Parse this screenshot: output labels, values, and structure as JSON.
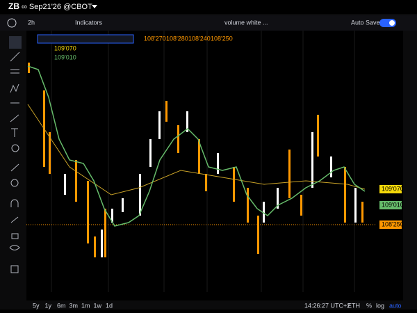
{
  "header": {
    "symbol": "ZB",
    "contract": "∞ Sep21'26 @CBOT"
  },
  "toolbar": {
    "interval": "2h",
    "indicators": "Indicators",
    "study": "volume white ...",
    "autosave": "Auto Save"
  },
  "legend": {
    "ma1": "109'070",
    "ma2": "109'010",
    "ohlc": [
      "108'270",
      "108'280",
      "108'240",
      "108'250"
    ]
  },
  "price_tags": [
    {
      "label": "109'070",
      "color": "#f5d90a",
      "text": "#000000"
    },
    {
      "label": "109'010",
      "color": "#66bb6a",
      "text": "#000000"
    },
    {
      "label": "108'250",
      "color": "#ff9800",
      "text": "#000000"
    }
  ],
  "ranges": [
    "5y",
    "1y",
    "6m",
    "3m",
    "1m",
    "1w",
    "1d"
  ],
  "status": {
    "time": "14:26:27 UTC+2",
    "session": "ETH",
    "percent": "%",
    "log": "log",
    "auto": "auto"
  }
}
